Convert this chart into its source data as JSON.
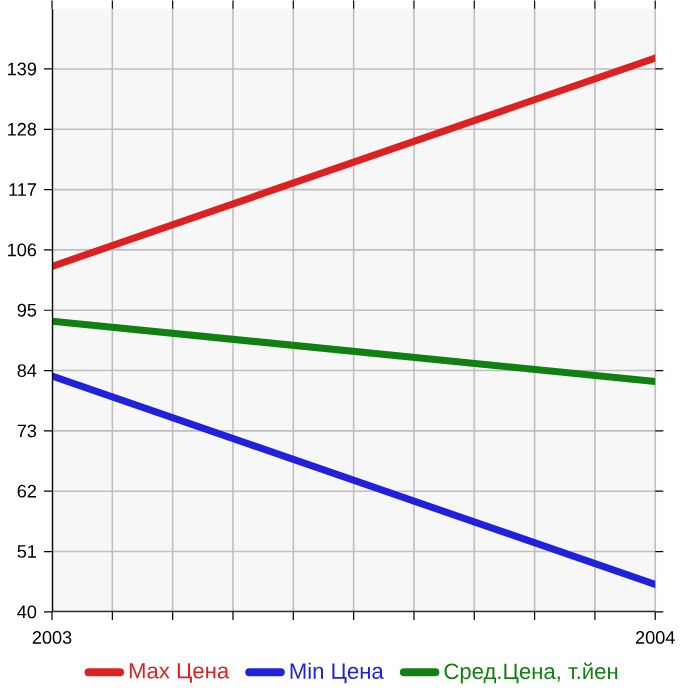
{
  "chart_data": {
    "type": "line",
    "x": [
      2003,
      2004
    ],
    "series": [
      {
        "name": "Max Цена",
        "color": "#dd2020",
        "values": [
          103,
          141
        ]
      },
      {
        "name": "Min Цена",
        "color": "#2020dd",
        "values": [
          83,
          45
        ]
      },
      {
        "name": "Сред.Цена, т.йен",
        "color": "#108010",
        "values": [
          93,
          82
        ]
      }
    ],
    "xlim": [
      2003,
      2004
    ],
    "xticks": [
      2003,
      {
        "value": 2003.1,
        "label": null
      },
      {
        "value": 2003.2,
        "label": null
      },
      {
        "value": 2003.3,
        "label": null
      },
      {
        "value": 2003.4,
        "label": null
      },
      {
        "value": 2003.5,
        "label": null
      },
      {
        "value": 2003.6,
        "label": null
      },
      {
        "value": 2003.7,
        "label": null
      },
      {
        "value": 2003.8,
        "label": null
      },
      {
        "value": 2003.9,
        "label": null
      },
      2004
    ],
    "ylim": [
      40,
      150
    ],
    "yticks": [
      40,
      51,
      62,
      73,
      84,
      95,
      106,
      117,
      128,
      139
    ],
    "grid": true,
    "legend": "bottom",
    "marker": "none",
    "line_style": "solid"
  }
}
